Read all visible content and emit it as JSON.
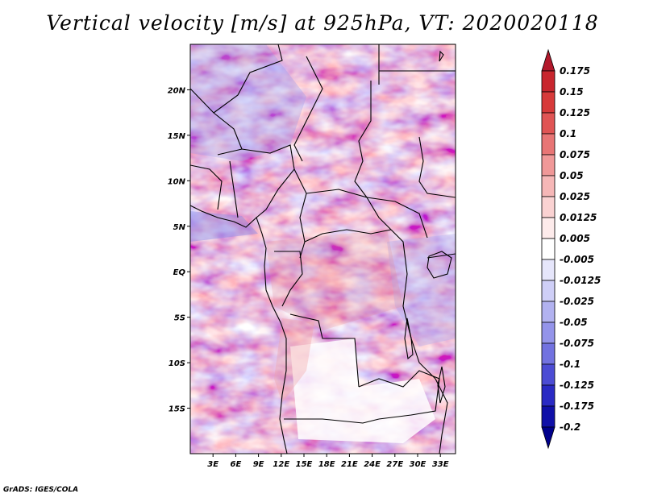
{
  "title": "Vertical velocity [m/s] at 925hPa, VT: 2020020118",
  "footer": "GrADS: IGES/COLA",
  "map": {
    "lon_range": [
      0,
      35
    ],
    "lat_range": [
      -20,
      25
    ],
    "x_ticks": [
      "3E",
      "6E",
      "9E",
      "12E",
      "15E",
      "18E",
      "21E",
      "24E",
      "27E",
      "30E",
      "33E"
    ],
    "y_ticks": [
      "20N",
      "15N",
      "10N",
      "5N",
      "EQ",
      "5S",
      "10S",
      "15S"
    ]
  },
  "colorbar": {
    "levels": [
      "0.175",
      "0.15",
      "0.125",
      "0.1",
      "0.075",
      "0.05",
      "0.025",
      "0.0125",
      "0.005",
      "-0.005",
      "-0.0125",
      "-0.025",
      "-0.05",
      "-0.075",
      "-0.1",
      "-0.125",
      "-0.175",
      "-0.2"
    ],
    "colors": [
      "#b2182b",
      "#c8262e",
      "#d73a3a",
      "#e05454",
      "#e87575",
      "#f09898",
      "#f6b7b7",
      "#fad2d2",
      "#fdebeb",
      "#ffffff",
      "#e6e6fb",
      "#cfcff7",
      "#b2b2f0",
      "#9494ea",
      "#7272e0",
      "#4c4cd4",
      "#2a2ac4",
      "#1010a8",
      "#00008c"
    ]
  }
}
